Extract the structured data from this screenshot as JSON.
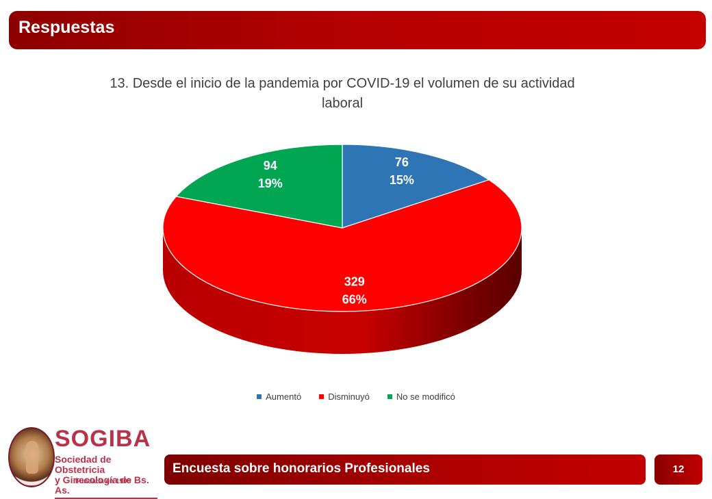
{
  "header": {
    "title": "Respuestas"
  },
  "chart_data": {
    "type": "pie",
    "title_line1": "13. Desde el inicio de la pandemia por COVID-19 el volumen de su actividad",
    "title_line2": "laboral",
    "slices": [
      {
        "label": "Aumentó",
        "value": 76,
        "percent": "15%",
        "color": "#2e75b6"
      },
      {
        "label": "Disminuyó",
        "value": 329,
        "percent": "66%",
        "color": "#ff0000"
      },
      {
        "label": "No se modificó",
        "value": 94,
        "percent": "19%",
        "color": "#00a651"
      }
    ],
    "legend_position": "bottom"
  },
  "logo": {
    "name": "SOGIBA",
    "subtitle_line1": "Sociedad de Obstetricia",
    "subtitle_line2": "y Ginecología de Bs. As.",
    "founded": "Fundada en 1908"
  },
  "footer": {
    "text": "Encuesta sobre honorarios Profesionales",
    "page": "12"
  }
}
